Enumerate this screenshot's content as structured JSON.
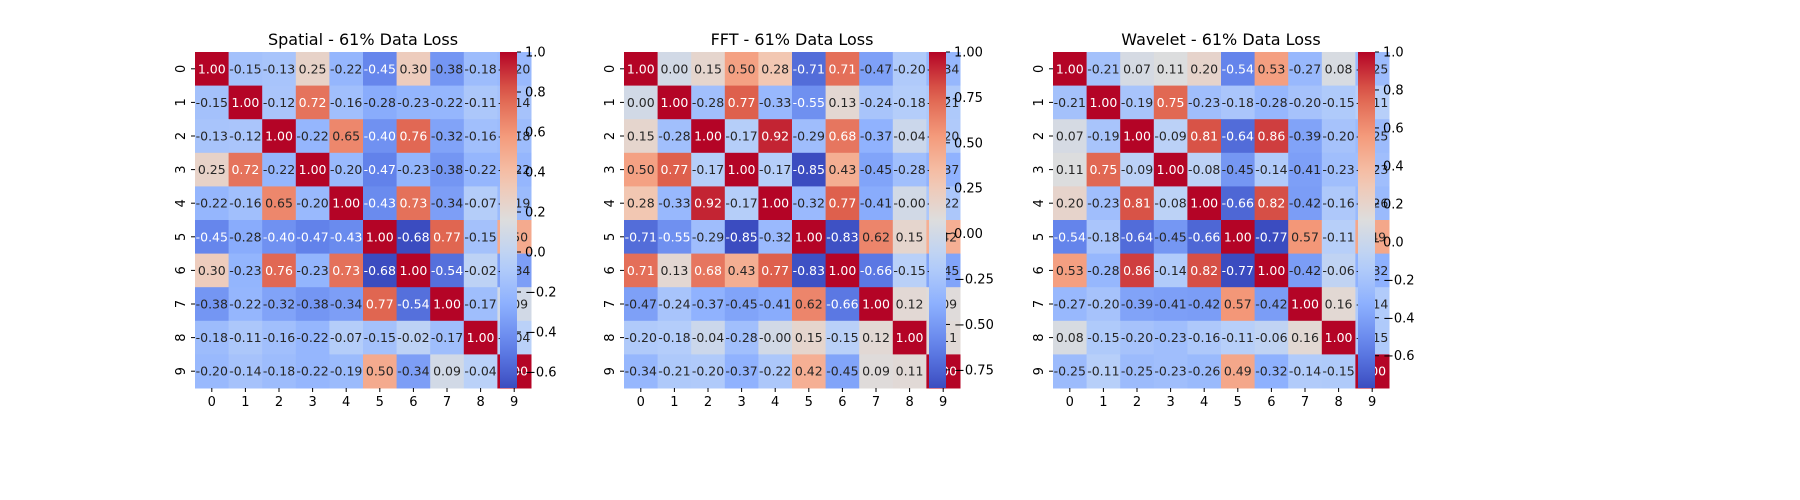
{
  "chart_data": [
    {
      "type": "heatmap",
      "title": "Spatial - 61% Data Loss",
      "xlabels": [
        "0",
        "1",
        "2",
        "3",
        "4",
        "5",
        "6",
        "7",
        "8",
        "9"
      ],
      "ylabels": [
        "0",
        "1",
        "2",
        "3",
        "4",
        "5",
        "6",
        "7",
        "8",
        "9"
      ],
      "vmin": -0.68,
      "vmax": 1.0,
      "colorbar_ticks": [
        "1.0",
        "0.8",
        "0.6",
        "0.4",
        "0.2",
        "0.0",
        "−0.2",
        "−0.4",
        "−0.6"
      ],
      "colorbar_tick_values": [
        1.0,
        0.8,
        0.6,
        0.4,
        0.2,
        0.0,
        -0.2,
        -0.4,
        -0.6
      ],
      "colormap": "coolwarm",
      "values": [
        [
          1.0,
          -0.15,
          -0.13,
          0.25,
          -0.22,
          -0.45,
          0.3,
          -0.38,
          -0.18,
          -0.2
        ],
        [
          -0.15,
          1.0,
          -0.12,
          0.72,
          -0.16,
          -0.28,
          -0.23,
          -0.22,
          -0.11,
          -0.14
        ],
        [
          -0.13,
          -0.12,
          1.0,
          -0.22,
          0.65,
          -0.4,
          0.76,
          -0.32,
          -0.16,
          -0.18
        ],
        [
          0.25,
          0.72,
          -0.22,
          1.0,
          -0.2,
          -0.47,
          -0.23,
          -0.38,
          -0.22,
          -0.22
        ],
        [
          -0.22,
          -0.16,
          0.65,
          -0.2,
          1.0,
          -0.43,
          0.73,
          -0.34,
          -0.07,
          -0.19
        ],
        [
          -0.45,
          -0.28,
          -0.4,
          -0.47,
          -0.43,
          1.0,
          -0.68,
          0.77,
          -0.15,
          0.5
        ],
        [
          0.3,
          -0.23,
          0.76,
          -0.23,
          0.73,
          -0.68,
          1.0,
          -0.54,
          -0.02,
          -0.34
        ],
        [
          -0.38,
          -0.22,
          -0.32,
          -0.38,
          -0.34,
          0.77,
          -0.54,
          1.0,
          -0.17,
          0.09
        ],
        [
          -0.18,
          -0.11,
          -0.16,
          -0.22,
          -0.07,
          -0.15,
          -0.02,
          -0.17,
          1.0,
          -0.04
        ],
        [
          -0.2,
          -0.14,
          -0.18,
          -0.22,
          -0.19,
          0.5,
          -0.34,
          0.09,
          -0.04,
          1.0
        ]
      ]
    },
    {
      "type": "heatmap",
      "title": "FFT - 61% Data Loss",
      "xlabels": [
        "0",
        "1",
        "2",
        "3",
        "4",
        "5",
        "6",
        "7",
        "8",
        "9"
      ],
      "ylabels": [
        "0",
        "1",
        "2",
        "3",
        "4",
        "5",
        "6",
        "7",
        "8",
        "9"
      ],
      "vmin": -0.85,
      "vmax": 1.0,
      "colorbar_ticks": [
        "1.00",
        "0.75",
        "0.50",
        "0.25",
        "0.00",
        "−0.25",
        "−0.50",
        "−0.75"
      ],
      "colorbar_tick_values": [
        1.0,
        0.75,
        0.5,
        0.25,
        0.0,
        -0.25,
        -0.5,
        -0.75
      ],
      "colormap": "coolwarm",
      "values": [
        [
          1.0,
          0.0,
          0.15,
          0.5,
          0.28,
          -0.71,
          0.71,
          -0.47,
          -0.2,
          -0.34
        ],
        [
          0.0,
          1.0,
          -0.28,
          0.77,
          -0.33,
          -0.55,
          0.13,
          -0.24,
          -0.18,
          -0.21
        ],
        [
          0.15,
          -0.28,
          1.0,
          -0.17,
          0.92,
          -0.29,
          0.68,
          -0.37,
          -0.04,
          -0.2
        ],
        [
          0.5,
          0.77,
          -0.17,
          1.0,
          -0.17,
          -0.85,
          0.43,
          -0.45,
          -0.28,
          -0.37
        ],
        [
          0.28,
          -0.33,
          0.92,
          -0.17,
          1.0,
          -0.32,
          0.77,
          -0.41,
          -0.0,
          -0.22
        ],
        [
          -0.71,
          -0.55,
          -0.29,
          -0.85,
          -0.32,
          1.0,
          -0.83,
          0.62,
          0.15,
          0.42
        ],
        [
          0.71,
          0.13,
          0.68,
          0.43,
          0.77,
          -0.83,
          1.0,
          -0.66,
          -0.15,
          -0.45
        ],
        [
          -0.47,
          -0.24,
          -0.37,
          -0.45,
          -0.41,
          0.62,
          -0.66,
          1.0,
          0.12,
          0.09
        ],
        [
          -0.2,
          -0.18,
          -0.04,
          -0.28,
          -0.0,
          0.15,
          -0.15,
          0.12,
          1.0,
          0.11
        ],
        [
          -0.34,
          -0.21,
          -0.2,
          -0.37,
          -0.22,
          0.42,
          -0.45,
          0.09,
          0.11,
          1.0
        ]
      ]
    },
    {
      "type": "heatmap",
      "title": "Wavelet - 61% Data Loss",
      "xlabels": [
        "0",
        "1",
        "2",
        "3",
        "4",
        "5",
        "6",
        "7",
        "8",
        "9"
      ],
      "ylabels": [
        "0",
        "1",
        "2",
        "3",
        "4",
        "5",
        "6",
        "7",
        "8",
        "9"
      ],
      "vmin": -0.77,
      "vmax": 1.0,
      "colorbar_ticks": [
        "1.0",
        "0.8",
        "0.6",
        "0.4",
        "0.2",
        "0.0",
        "−0.2",
        "−0.4",
        "−0.6"
      ],
      "colorbar_tick_values": [
        1.0,
        0.8,
        0.6,
        0.4,
        0.2,
        0.0,
        -0.2,
        -0.4,
        -0.6
      ],
      "colormap": "coolwarm",
      "values": [
        [
          1.0,
          -0.21,
          0.07,
          0.11,
          0.2,
          -0.54,
          0.53,
          -0.27,
          0.08,
          -0.25
        ],
        [
          -0.21,
          1.0,
          -0.19,
          0.75,
          -0.23,
          -0.18,
          -0.28,
          -0.2,
          -0.15,
          -0.11
        ],
        [
          0.07,
          -0.19,
          1.0,
          -0.09,
          0.81,
          -0.64,
          0.86,
          -0.39,
          -0.2,
          -0.25
        ],
        [
          0.11,
          0.75,
          -0.09,
          1.0,
          -0.08,
          -0.45,
          -0.14,
          -0.41,
          -0.23,
          -0.23
        ],
        [
          0.2,
          -0.23,
          0.81,
          -0.08,
          1.0,
          -0.66,
          0.82,
          -0.42,
          -0.16,
          -0.26
        ],
        [
          -0.54,
          -0.18,
          -0.64,
          -0.45,
          -0.66,
          1.0,
          -0.77,
          0.57,
          -0.11,
          0.49
        ],
        [
          0.53,
          -0.28,
          0.86,
          -0.14,
          0.82,
          -0.77,
          1.0,
          -0.42,
          -0.06,
          -0.32
        ],
        [
          -0.27,
          -0.2,
          -0.39,
          -0.41,
          -0.42,
          0.57,
          -0.42,
          1.0,
          0.16,
          -0.14
        ],
        [
          0.08,
          -0.15,
          -0.2,
          -0.23,
          -0.16,
          -0.11,
          -0.06,
          0.16,
          1.0,
          -0.15
        ],
        [
          -0.25,
          -0.11,
          -0.25,
          -0.23,
          -0.26,
          0.49,
          -0.32,
          -0.14,
          -0.15,
          1.0
        ]
      ]
    }
  ]
}
